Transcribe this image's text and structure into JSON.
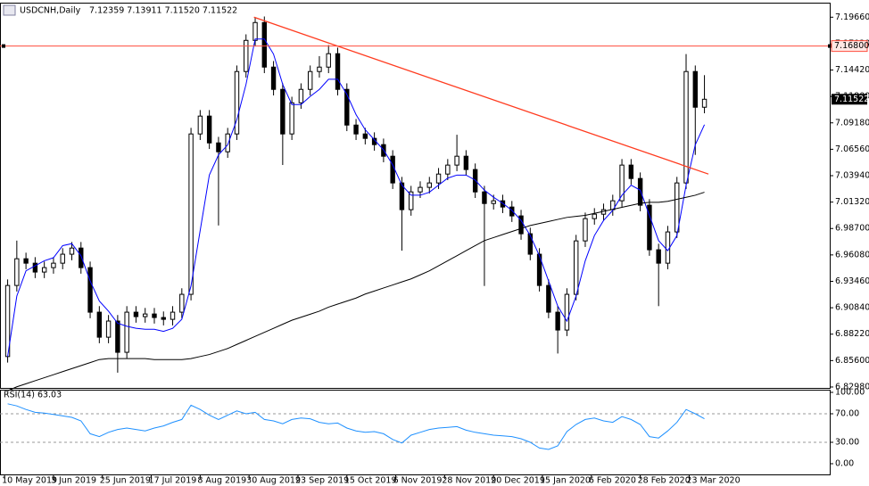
{
  "chart_data": [
    {
      "type": "candlestick",
      "title": "USDCNH,Daily",
      "ohlc_label": "7.12359 7.13911 7.11520 7.11522",
      "xlim": [
        -1.5,
        270
      ],
      "ylim": [
        6.828,
        7.211
      ],
      "xticks": [
        {
          "value": 0,
          "label": "10 May 2019"
        },
        {
          "value": 16,
          "label": "3 Jun 2019"
        },
        {
          "value": 32,
          "label": "25 Jun 2019"
        },
        {
          "value": 48,
          "label": "17 Jul 2019"
        },
        {
          "value": 64,
          "label": "8 Aug 2019"
        },
        {
          "value": 80,
          "label": "30 Aug 2019"
        },
        {
          "value": 96,
          "label": "23 Sep 2019"
        },
        {
          "value": 112,
          "label": "15 Oct 2019"
        },
        {
          "value": 128,
          "label": "6 Nov 2019"
        },
        {
          "value": 144,
          "label": "28 Nov 2019"
        },
        {
          "value": 160,
          "label": "20 Dec 2019"
        },
        {
          "value": 176,
          "label": "15 Jan 2020"
        },
        {
          "value": 192,
          "label": "6 Feb 2020"
        },
        {
          "value": 208,
          "label": "28 Feb 2020"
        },
        {
          "value": 224,
          "label": "23 Mar 2020"
        }
      ],
      "yticks": [
        {
          "value": 7.1966,
          "label": "7.19660"
        },
        {
          "value": 7.1702,
          "label": "7.17020"
        },
        {
          "value": 7.1442,
          "label": "7.14420"
        },
        {
          "value": 7.118,
          "label": "7.11800"
        },
        {
          "value": 7.0918,
          "label": "7.09180"
        },
        {
          "value": 7.0656,
          "label": "7.06560"
        },
        {
          "value": 7.0394,
          "label": "7.03940"
        },
        {
          "value": 7.0132,
          "label": "7.01320"
        },
        {
          "value": 6.987,
          "label": "6.98700"
        },
        {
          "value": 6.9608,
          "label": "6.96080"
        },
        {
          "value": 6.9346,
          "label": "6.93460"
        },
        {
          "value": 6.9084,
          "label": "6.90840"
        },
        {
          "value": 6.8822,
          "label": "6.88220"
        },
        {
          "value": 6.856,
          "label": "6.85600"
        },
        {
          "value": 6.8298,
          "label": "6.82980"
        }
      ],
      "x": [
        1,
        4,
        7,
        10,
        13,
        16,
        19,
        22,
        25,
        28,
        31,
        34,
        37,
        40,
        43,
        46,
        49,
        52,
        55,
        58,
        61,
        64,
        67,
        70,
        73,
        76,
        79,
        82,
        85,
        88,
        91,
        94,
        97,
        100,
        103,
        106,
        109,
        112,
        115,
        118,
        121,
        124,
        127,
        130,
        133,
        136,
        139,
        142,
        145,
        148,
        151,
        154,
        157,
        160,
        163,
        166,
        169,
        172,
        175,
        178,
        181,
        184,
        187,
        190,
        193,
        196,
        199,
        202,
        205,
        208,
        211,
        214,
        217,
        220,
        223,
        226,
        229
      ],
      "open": [
        6.86,
        6.9305,
        6.957,
        6.9526,
        6.9438,
        6.9482,
        6.9526,
        6.9615,
        6.9676,
        6.9482,
        6.904,
        6.8792,
        6.8952,
        6.8642,
        6.904,
        6.8996,
        6.9022,
        6.8987,
        6.8969,
        6.904,
        6.9217,
        7.0808,
        7.0985,
        7.0719,
        7.0631,
        7.0808,
        7.1427,
        7.1736,
        7.1913,
        7.1471,
        7.125,
        7.0808,
        7.1117,
        7.125,
        7.1427,
        7.1471,
        7.1604,
        7.125,
        7.0896,
        7.0808,
        7.0764,
        7.0702,
        7.0587,
        7.0322,
        7.0057,
        7.0233,
        7.0278,
        7.0322,
        7.041,
        7.0499,
        7.0587,
        7.0455,
        7.0233,
        7.0118,
        7.0145,
        7.0083,
        6.9995,
        6.9818,
        6.9615,
        6.9305,
        6.904,
        6.8863,
        6.9217,
        6.9747,
        6.9968,
        7.0012,
        7.0057,
        7.0145,
        7.0499,
        7.0366,
        7.0101,
        6.9659,
        6.9526,
        6.9836,
        7.0322,
        7.1427,
        7.1073
      ],
      "high": [
        6.9365,
        6.975,
        6.963,
        6.9586,
        6.9542,
        6.9586,
        6.9675,
        6.9736,
        6.9736,
        6.9542,
        6.91,
        6.9012,
        6.9012,
        6.91,
        6.91,
        6.9082,
        6.9082,
        6.9047,
        6.91,
        6.9277,
        7.0868,
        7.1045,
        7.1045,
        7.0779,
        7.0868,
        7.1487,
        7.1796,
        7.196,
        7.1973,
        7.1531,
        7.131,
        7.1177,
        7.131,
        7.1487,
        7.158,
        7.169,
        7.1664,
        7.131,
        7.0956,
        7.0868,
        7.0824,
        7.0762,
        7.0647,
        7.0382,
        7.0293,
        7.0338,
        7.0382,
        7.047,
        7.0559,
        7.08,
        7.0647,
        7.0515,
        7.0293,
        7.0205,
        7.0205,
        7.0143,
        7.0055,
        6.9878,
        6.9675,
        6.9365,
        6.91,
        6.9277,
        6.9807,
        7.0028,
        7.0072,
        7.0117,
        7.0205,
        7.0559,
        7.0559,
        7.0426,
        7.0161,
        6.9719,
        6.9896,
        7.0382,
        7.16,
        7.1487,
        7.1391
      ],
      "low": [
        6.854,
        6.9245,
        6.9466,
        6.9378,
        6.9378,
        6.9422,
        6.9466,
        6.9555,
        6.9422,
        6.898,
        6.8732,
        6.8732,
        6.844,
        6.8582,
        6.8936,
        6.8936,
        6.8927,
        6.8909,
        6.8909,
        6.898,
        6.9157,
        7.0748,
        7.0659,
        6.99,
        7.0571,
        7.0748,
        7.1367,
        7.1676,
        7.1411,
        7.119,
        7.05,
        7.0748,
        7.1057,
        7.119,
        7.1367,
        7.1411,
        7.119,
        7.0836,
        7.0748,
        7.0704,
        7.0642,
        7.0527,
        7.0262,
        6.965,
        6.9997,
        7.0173,
        7.0218,
        7.0262,
        7.035,
        7.0439,
        7.0395,
        7.0173,
        6.93,
        7.0058,
        7.0023,
        6.9935,
        6.9758,
        6.9555,
        6.9245,
        6.898,
        6.863,
        6.8803,
        6.9157,
        6.9687,
        6.9908,
        6.9952,
        6.9997,
        7.0085,
        7.0306,
        7.0041,
        6.9599,
        6.91,
        6.9466,
        6.9776,
        7.0262,
        7.06,
        7.1013
      ],
      "close": [
        6.9305,
        6.957,
        6.9526,
        6.9438,
        6.9482,
        6.9526,
        6.9615,
        6.9676,
        6.9482,
        6.904,
        6.8792,
        6.8952,
        6.8642,
        6.904,
        6.8996,
        6.9022,
        6.8987,
        6.8969,
        6.904,
        6.9217,
        7.0808,
        7.0985,
        7.0719,
        7.0631,
        7.0808,
        7.1427,
        7.1736,
        7.1913,
        7.1471,
        7.125,
        7.0808,
        7.1117,
        7.125,
        7.1427,
        7.1471,
        7.1604,
        7.125,
        7.0896,
        7.0808,
        7.0764,
        7.0702,
        7.0587,
        7.0322,
        7.0057,
        7.0233,
        7.0278,
        7.0322,
        7.041,
        7.0499,
        7.0587,
        7.0455,
        7.0233,
        7.0118,
        7.0145,
        7.0083,
        6.9995,
        6.9818,
        6.9615,
        6.9305,
        6.904,
        6.8863,
        6.9217,
        6.9747,
        6.9968,
        7.0012,
        7.0057,
        7.0145,
        7.0499,
        7.0366,
        7.0101,
        6.9659,
        6.9526,
        6.9836,
        7.0322,
        7.1427,
        7.1073,
        7.1152
      ],
      "lines": [
        {
          "color": "#0000ff",
          "values": [
            6.86,
            6.92,
            6.945,
            6.95,
            6.955,
            6.958,
            6.97,
            6.972,
            6.96,
            6.935,
            6.915,
            6.905,
            6.893,
            6.89,
            6.888,
            6.887,
            6.887,
            6.885,
            6.888,
            6.897,
            6.93,
            6.985,
            7.04,
            7.06,
            7.07,
            7.095,
            7.13,
            7.175,
            7.175,
            7.16,
            7.13,
            7.11,
            7.11,
            7.118,
            7.125,
            7.135,
            7.135,
            7.12,
            7.1,
            7.085,
            7.075,
            7.065,
            7.05,
            7.03,
            7.02,
            7.02,
            7.023,
            7.03,
            7.037,
            7.04,
            7.04,
            7.035,
            7.025,
            7.018,
            7.012,
            7.005,
            6.995,
            6.98,
            6.96,
            6.935,
            6.91,
            6.895,
            6.92,
            6.955,
            6.98,
            6.995,
            7.005,
            7.02,
            7.03,
            7.025,
            7.0,
            6.975,
            6.965,
            6.98,
            7.03,
            7.07,
            7.09
          ]
        },
        {
          "color": "#000000",
          "values": [
            6.826,
            6.83,
            6.833,
            6.836,
            6.839,
            6.842,
            6.845,
            6.848,
            6.851,
            6.854,
            6.857,
            6.858,
            6.858,
            6.858,
            6.858,
            6.858,
            6.857,
            6.857,
            6.857,
            6.857,
            6.858,
            6.86,
            6.862,
            6.865,
            6.868,
            6.872,
            6.876,
            6.88,
            6.884,
            6.888,
            6.892,
            6.896,
            6.899,
            6.902,
            6.905,
            6.909,
            6.912,
            6.915,
            6.918,
            6.922,
            6.925,
            6.928,
            6.931,
            6.934,
            6.937,
            6.941,
            6.945,
            6.95,
            6.955,
            6.96,
            6.965,
            6.97,
            6.975,
            6.978,
            6.981,
            6.984,
            6.987,
            6.99,
            6.992,
            6.994,
            6.996,
            6.998,
            6.999,
            7.0,
            7.002,
            7.004,
            7.006,
            7.008,
            7.01,
            7.012,
            7.013,
            7.013,
            7.014,
            7.016,
            7.018,
            7.02,
            7.023
          ]
        }
      ],
      "trendline": {
        "color": "#ff3b1f",
        "x": [
          81.6,
          230.3
        ],
        "values": [
          7.1966,
          7.041
        ]
      },
      "hline": {
        "color": "#ff4d3d",
        "value": 7.168,
        "label": "7.16800"
      },
      "price": {
        "value": 7.11522,
        "label": "7.11522"
      }
    },
    {
      "type": "line",
      "title": "RSI(14) 63.03",
      "color": "#1e90ff",
      "ylim": [
        -16.25,
        102.5
      ],
      "yticks": [
        {
          "value": 100,
          "label": "100.00"
        },
        {
          "value": 70,
          "label": "70.00"
        },
        {
          "value": 30,
          "label": "30.00"
        },
        {
          "value": 0,
          "label": "0.00"
        }
      ],
      "levels": [
        70,
        30
      ],
      "values": [
        84,
        81,
        76,
        72,
        71,
        69,
        67,
        65,
        60,
        42,
        38,
        44,
        48,
        50,
        48,
        46,
        50,
        53,
        58,
        62,
        82,
        76,
        68,
        62,
        68,
        74,
        70,
        72,
        62,
        60,
        56,
        62,
        64,
        63,
        58,
        56,
        57,
        50,
        46,
        44,
        45,
        42,
        34,
        29,
        40,
        44,
        48,
        50,
        51,
        52,
        47,
        44,
        42,
        40,
        39,
        38,
        35,
        30,
        22,
        20,
        25,
        45,
        55,
        62,
        64,
        60,
        58,
        66,
        62,
        55,
        38,
        36,
        46,
        58,
        76,
        70,
        63.03
      ]
    }
  ]
}
